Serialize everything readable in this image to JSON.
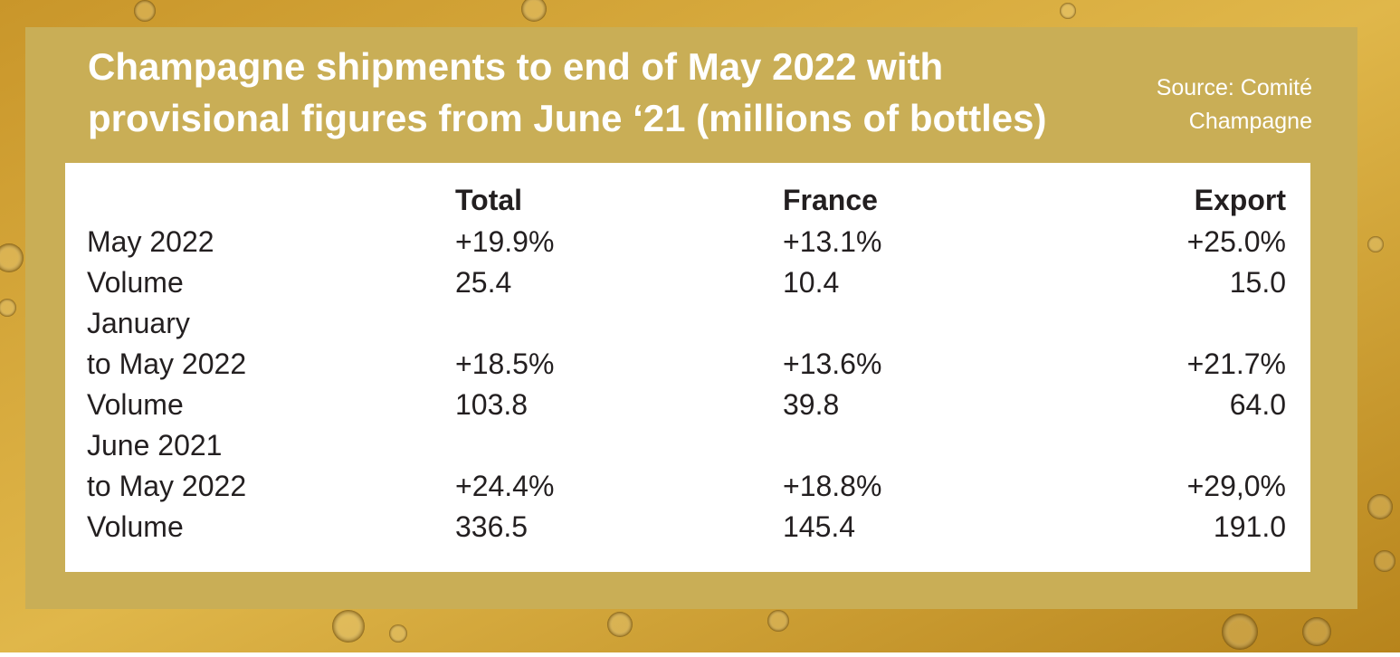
{
  "header": {
    "title_lines": [
      "Champagne shipments to end of May 2022 with",
      "provisional figures from June ‘21 (millions of bottles)"
    ],
    "source_lines": [
      "Source: Comité",
      "Champagne"
    ]
  },
  "table": {
    "columns": [
      "Total",
      "France",
      "Export"
    ],
    "rows": [
      {
        "label_lines": [
          "May 2022"
        ],
        "cells": [
          "+19.9%",
          "+13.1%",
          "+25.0%"
        ]
      },
      {
        "label_lines": [
          "Volume"
        ],
        "cells": [
          "25.4",
          "10.4",
          "15.0"
        ]
      },
      {
        "label_lines": [
          "January",
          "to May 2022"
        ],
        "cells": [
          "+18.5%",
          "+13.6%",
          "+21.7%"
        ]
      },
      {
        "label_lines": [
          "Volume"
        ],
        "cells": [
          "103.8",
          "39.8",
          "64.0"
        ]
      },
      {
        "label_lines": [
          "June 2021",
          "to May 2022"
        ],
        "cells": [
          "+24.4%",
          "+18.8%",
          "+29,0%"
        ]
      },
      {
        "label_lines": [
          "Volume"
        ],
        "cells": [
          "336.5",
          "145.4",
          "191.0"
        ]
      }
    ]
  }
}
